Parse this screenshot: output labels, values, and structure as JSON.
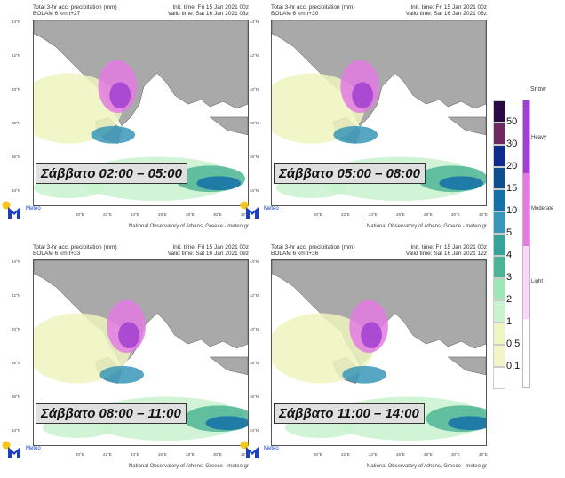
{
  "panels": [
    {
      "title1": "Total 3-hr acc. precipitation (mm)",
      "title2": "BOLAM 6 km t+27",
      "init": "Init. time: Fri 15 Jan 2021 00z",
      "valid": "Valid time: Sat 16 Jan 2021 03z",
      "label": "Σάββατο 02:00 – 05:00"
    },
    {
      "title1": "Total 3-hr acc. precipitation (mm)",
      "title2": "BOLAM 6 km t+30",
      "init": "Init. time: Fri 15 Jan 2021 00z",
      "valid": "Valid time: Sat 16 Jan 2021 06z",
      "label": "Σάββατο 05:00 – 08:00"
    },
    {
      "title1": "Total 3-hr acc. precipitation (mm)",
      "title2": "BOLAM 6 km t+33",
      "init": "Init. time: Fri 15 Jan 2021 00z",
      "valid": "Valid time: Sat 16 Jan 2021 09z",
      "label": "Σάββατο 08:00 – 11:00"
    },
    {
      "title1": "Total 3-hr acc. precipitation (mm)",
      "title2": "BOLAM 6 km t+36",
      "init": "Init. time: Fri 15 Jan 2021 00z",
      "valid": "Valid time: Sat 16 Jan 2021 12z",
      "label": "Σάββατο 11:00 – 14:00"
    }
  ],
  "lat_ticks": [
    "44°N",
    "42°N",
    "40°N",
    "38°N",
    "36°N",
    "34°N"
  ],
  "lon_ticks": [
    "20°E",
    "22°E",
    "24°E",
    "26°E",
    "28°E",
    "30°E",
    "32°E"
  ],
  "credit": "National Observatory of Athens, Greece - meteo.gr",
  "logo_text": "Meteo",
  "colorbar": {
    "labels": [
      "50",
      "30",
      "20",
      "15",
      "10",
      "5",
      "4",
      "3",
      "2",
      "1",
      "0.5",
      "0.1"
    ],
    "colors": [
      "#2a0a45",
      "#6e2a5e",
      "#0d2a8c",
      "#0d4f8c",
      "#1570a8",
      "#3a96b8",
      "#36a39a",
      "#4db597",
      "#9ee6b5",
      "#c9f2cf",
      "#eef5c0",
      "#f2f5c8",
      "#ffffff"
    ]
  },
  "snow": {
    "title": "Snow",
    "levels": [
      {
        "label": "Heavy",
        "color": "#a23fd0"
      },
      {
        "label": "Moderate",
        "color": "#e37be3"
      },
      {
        "label": "Light",
        "color": "#f8d8f6"
      }
    ]
  }
}
